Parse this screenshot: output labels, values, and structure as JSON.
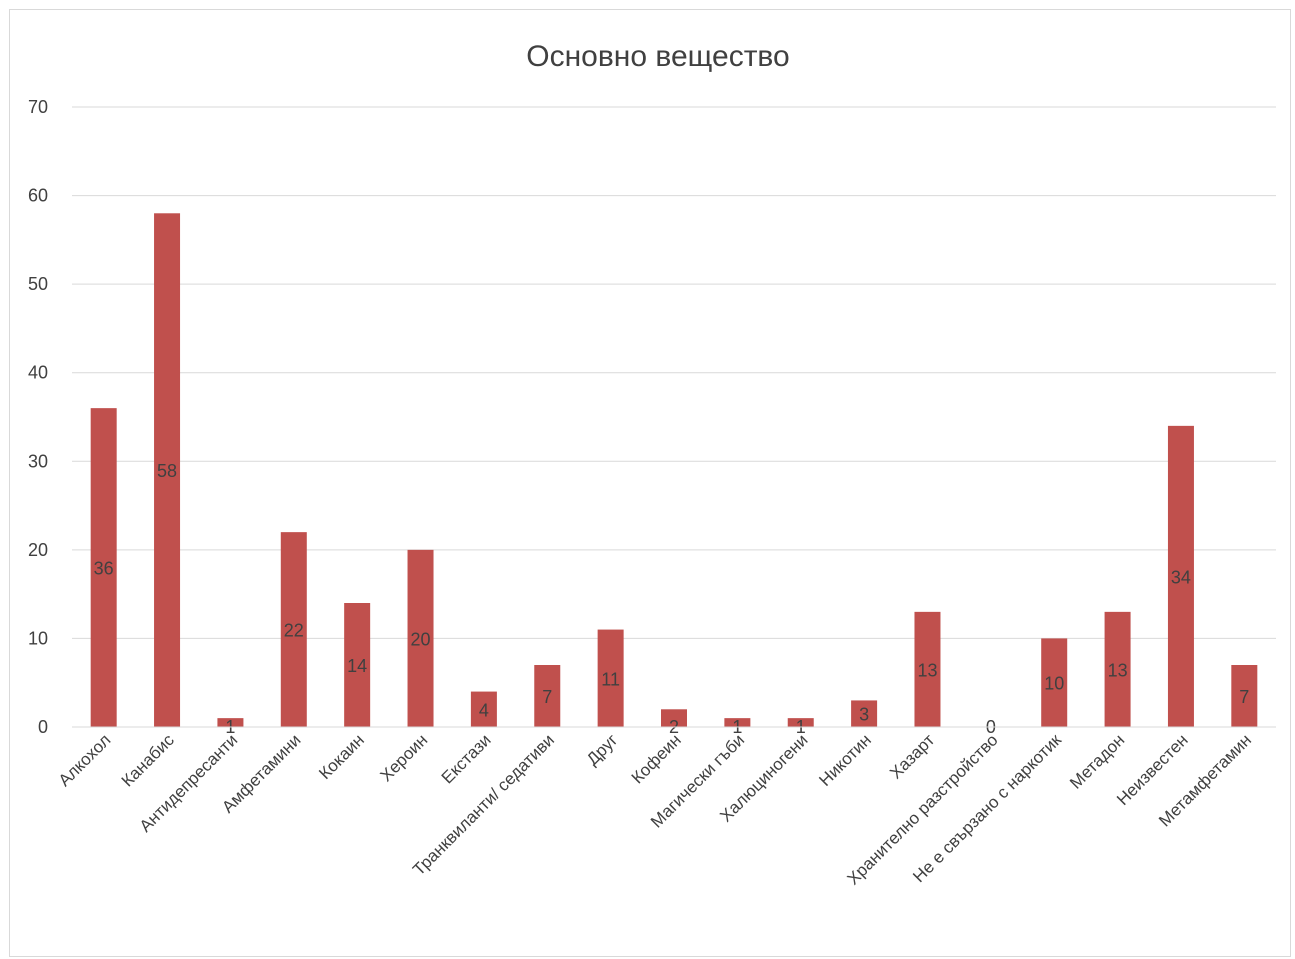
{
  "chart_data": {
    "type": "bar",
    "title": "Основно вещество",
    "xlabel": "",
    "ylabel": "",
    "ylim": [
      0,
      70
    ],
    "yticks": [
      0,
      10,
      20,
      30,
      40,
      50,
      60,
      70
    ],
    "grid": true,
    "legend": "none",
    "bar_color": "#c0504d",
    "categories": [
      "Алкохол",
      "Канабис",
      "Антидепресанти",
      "Амфетамини",
      "Кокаин",
      "Хероин",
      "Екстази",
      "Транквиланти/ седативи",
      "Друг",
      "Кофеин",
      "Магически гъби",
      "Халюциногени",
      "Никотин",
      "Хазарт",
      "Хранително разстройство",
      "Не е свързано с наркотик",
      "Метадон",
      "Неизвестен",
      "Метамфетамин"
    ],
    "values": [
      36,
      58,
      1,
      22,
      14,
      20,
      4,
      7,
      11,
      2,
      1,
      1,
      3,
      13,
      0,
      10,
      13,
      34,
      7
    ],
    "data_labels": [
      "36",
      "58",
      "1",
      "22",
      "14",
      "20",
      "4",
      "7",
      "11",
      "2",
      "1",
      "1",
      "3",
      "13",
      "0",
      "10",
      "13",
      "34",
      "7"
    ]
  }
}
